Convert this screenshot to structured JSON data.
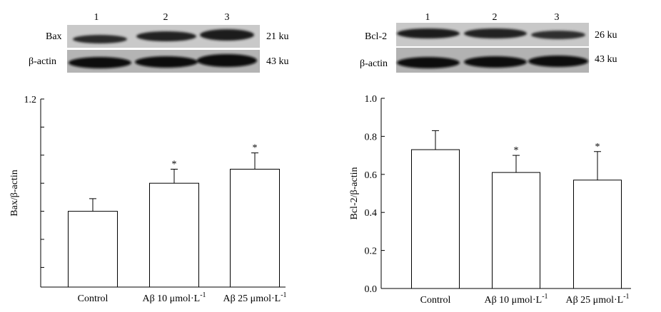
{
  "left_panel": {
    "blot": {
      "lane_numbers": [
        "1",
        "2",
        "3"
      ],
      "rows": [
        {
          "label": "Bax",
          "size": "21 ku"
        },
        {
          "label": "β-actin",
          "size": "43 ku"
        }
      ]
    }
  },
  "right_panel": {
    "blot": {
      "lane_numbers": [
        "1",
        "2",
        "3"
      ],
      "rows": [
        {
          "label": "Bcl-2",
          "size": "26 ku"
        },
        {
          "label": "β-actin",
          "size": "43 ku"
        }
      ]
    }
  },
  "chart_data": [
    {
      "type": "bar",
      "categories": [
        "Control",
        "Aβ 10 μmol·L",
        "Aβ 25 μmol·L"
      ],
      "category_superscripts": [
        "",
        "-1",
        "-1"
      ],
      "values": [
        0.8,
        0.9,
        0.95
      ],
      "errors": [
        0.045,
        0.05,
        0.058
      ],
      "significance": [
        "",
        "*",
        "*"
      ],
      "ylabel": "Bax/β-actin",
      "xlabel": "",
      "ylim": [
        0.53,
        1.2
      ],
      "ytick_labels": [
        {
          "value": 1.2,
          "label": "1.2"
        }
      ],
      "minor_ticks": [
        0.6,
        0.7,
        0.8,
        0.9,
        1.0,
        1.1
      ],
      "grid": false
    },
    {
      "type": "bar",
      "categories": [
        "Control",
        "Aβ 10 μmol·L",
        "Aβ 25 μmol·L"
      ],
      "category_superscripts": [
        "",
        "-1",
        "-1"
      ],
      "values": [
        0.73,
        0.61,
        0.57
      ],
      "errors": [
        0.1,
        0.09,
        0.15
      ],
      "significance": [
        "",
        "*",
        "*"
      ],
      "ylabel": "Bcl-2/β-actin",
      "xlabel": "",
      "ylim": [
        0.0,
        1.0
      ],
      "ytick_labels": [
        {
          "value": 0.0,
          "label": "0.0"
        },
        {
          "value": 0.2,
          "label": "0.2"
        },
        {
          "value": 0.4,
          "label": "0.4"
        },
        {
          "value": 0.6,
          "label": "0.6"
        },
        {
          "value": 0.8,
          "label": "0.8"
        },
        {
          "value": 1.0,
          "label": "1.0"
        }
      ],
      "minor_ticks": [],
      "grid": false
    }
  ]
}
